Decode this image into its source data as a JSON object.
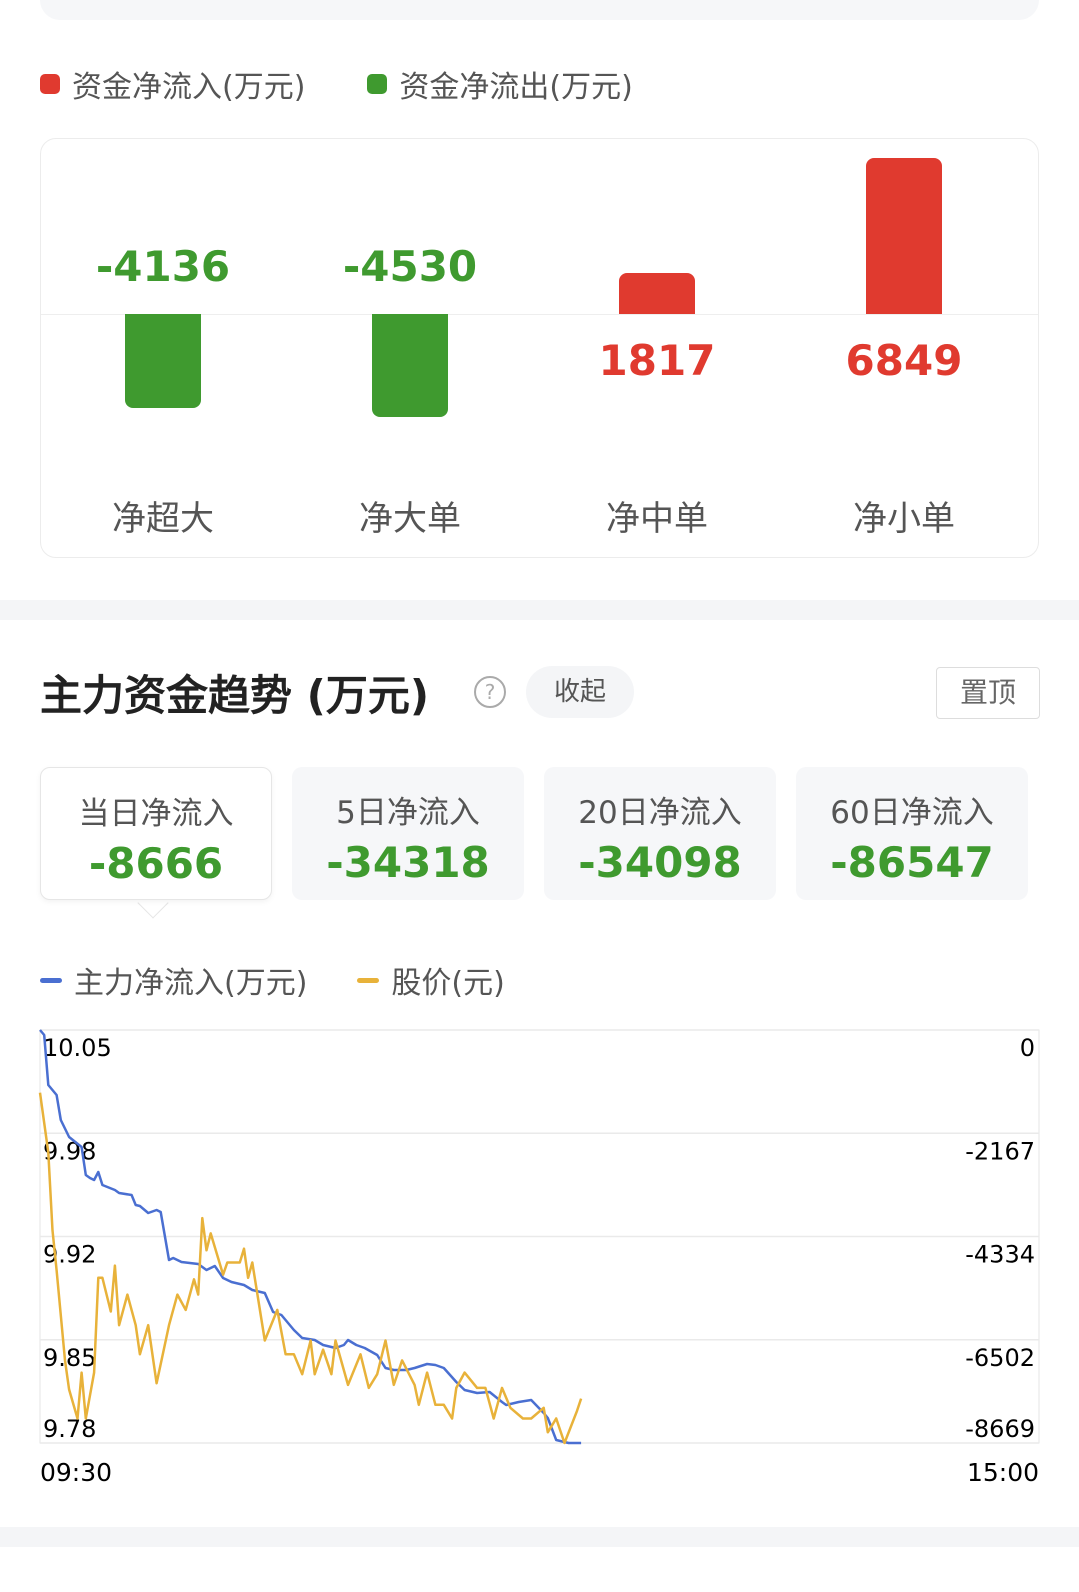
{
  "colors": {
    "inflow": "#e03a2f",
    "outflow": "#3f9a2f",
    "flow_line": "#4a6fd1",
    "price_line": "#e8b23a"
  },
  "distribution": {
    "legend": [
      {
        "label": "资金净流入(万元)",
        "color": "#e03a2f"
      },
      {
        "label": "资金净流出(万元)",
        "color": "#3f9a2f"
      }
    ],
    "chart_data": {
      "type": "bar",
      "categories": [
        "净超大",
        "净大单",
        "净中单",
        "净小单"
      ],
      "values": [
        -4136,
        -4530,
        1817,
        6849
      ],
      "value_labels": [
        "-4136",
        "-4530",
        "1817",
        "6849"
      ]
    }
  },
  "trend": {
    "title": "主力资金趋势 (万元)",
    "help_icon": "question-circle-icon",
    "collapse_label": "收起",
    "pin_label": "置顶",
    "tabs": [
      {
        "label": "当日净流入",
        "value": "-8666",
        "active": true
      },
      {
        "label": "5日净流入",
        "value": "-34318"
      },
      {
        "label": "20日净流入",
        "value": "-34098"
      },
      {
        "label": "60日净流入",
        "value": "-86547"
      }
    ],
    "legend": [
      {
        "label": "主力净流入(万元)",
        "color": "#4a6fd1"
      },
      {
        "label": "股价(元)",
        "color": "#e8b23a"
      }
    ],
    "chart_data": {
      "type": "line",
      "x_ticks": [
        "09:30",
        "15:00"
      ],
      "left_axis": {
        "ticks": [
          "10.05",
          "9.98",
          "9.92",
          "9.85",
          "9.78"
        ],
        "range": [
          9.78,
          10.05
        ]
      },
      "right_axis": {
        "ticks": [
          "0",
          "-2167",
          "-4334",
          "-6502",
          "-8669"
        ],
        "range": [
          -8669,
          0
        ]
      },
      "grid": true,
      "series": [
        {
          "name": "主力净流入(万元)",
          "axis": "right",
          "points": [
            [
              "09:30",
              0
            ],
            [
              "09:31",
              -105
            ],
            [
              "09:32",
              -1154
            ],
            [
              "09:34",
              -1364
            ],
            [
              "09:35",
              -1889
            ],
            [
              "09:37",
              -2246
            ],
            [
              "09:40",
              -2456
            ],
            [
              "09:41",
              -3044
            ],
            [
              "09:42",
              -3107
            ],
            [
              "09:43",
              -3149
            ],
            [
              "09:44",
              -2981
            ],
            [
              "09:45",
              -3253
            ],
            [
              "09:48",
              -3358
            ],
            [
              "09:49",
              -3421
            ],
            [
              "09:52",
              -3463
            ],
            [
              "09:53",
              -3673
            ],
            [
              "09:54",
              -3694
            ],
            [
              "09:56",
              -3841
            ],
            [
              "09:58",
              -3778
            ],
            [
              "09:59",
              -3820
            ],
            [
              "10:01",
              -4828
            ],
            [
              "10:02",
              -4786
            ],
            [
              "10:04",
              -4870
            ],
            [
              "10:08",
              -4912
            ],
            [
              "10:10",
              -5038
            ],
            [
              "10:12",
              -4954
            ],
            [
              "10:14",
              -5206
            ],
            [
              "10:16",
              -5290
            ],
            [
              "10:19",
              -5352
            ],
            [
              "10:21",
              -5457
            ],
            [
              "10:24",
              -5520
            ],
            [
              "10:26",
              -5919
            ],
            [
              "10:28",
              -5982
            ],
            [
              "10:31",
              -6297
            ],
            [
              "10:33",
              -6465
            ],
            [
              "10:36",
              -6507
            ],
            [
              "10:38",
              -6612
            ],
            [
              "10:41",
              -6675
            ],
            [
              "10:43",
              -6612
            ],
            [
              "10:44",
              -6507
            ],
            [
              "10:46",
              -6612
            ],
            [
              "10:48",
              -6675
            ],
            [
              "10:51",
              -6822
            ],
            [
              "10:53",
              -7095
            ],
            [
              "10:55",
              -7137
            ],
            [
              "10:58",
              -7137
            ],
            [
              "11:00",
              -7095
            ],
            [
              "11:03",
              -7011
            ],
            [
              "11:05",
              -7032
            ],
            [
              "11:07",
              -7095
            ],
            [
              "11:10",
              -7389
            ],
            [
              "11:12",
              -7557
            ],
            [
              "11:15",
              -7620
            ],
            [
              "11:18",
              -7599
            ],
            [
              "11:21",
              -7809
            ],
            [
              "11:22",
              -7872
            ],
            [
              "11:25",
              -7809
            ],
            [
              "11:28",
              -7767
            ],
            [
              "13:01",
              -8040
            ],
            [
              "13:02",
              -8145
            ],
            [
              "13:04",
              -8606
            ],
            [
              "13:07",
              -8669
            ],
            [
              "13:10",
              -8669
            ]
          ]
        },
        {
          "name": "股价(元)",
          "axis": "left",
          "points": [
            [
              "09:30",
              10.009
            ],
            [
              "09:32",
              9.97
            ],
            [
              "09:33",
              9.919
            ],
            [
              "09:34",
              9.893
            ],
            [
              "09:36",
              9.834
            ],
            [
              "09:37",
              9.815
            ],
            [
              "09:39",
              9.796
            ],
            [
              "09:40",
              9.826
            ],
            [
              "09:41",
              9.796
            ],
            [
              "09:43",
              9.826
            ],
            [
              "09:44",
              9.888
            ],
            [
              "09:45",
              9.888
            ],
            [
              "09:47",
              9.866
            ],
            [
              "09:48",
              9.896
            ],
            [
              "09:49",
              9.857
            ],
            [
              "09:51",
              9.877
            ],
            [
              "09:53",
              9.857
            ],
            [
              "09:54",
              9.838
            ],
            [
              "09:56",
              9.857
            ],
            [
              "09:58",
              9.819
            ],
            [
              "10:01",
              9.857
            ],
            [
              "10:03",
              9.877
            ],
            [
              "10:05",
              9.867
            ],
            [
              "10:07",
              9.887
            ],
            [
              "10:08",
              9.877
            ],
            [
              "10:09",
              9.927
            ],
            [
              "10:10",
              9.906
            ],
            [
              "10:11",
              9.917
            ],
            [
              "10:14",
              9.89
            ],
            [
              "10:15",
              9.898
            ],
            [
              "10:18",
              9.898
            ],
            [
              "10:19",
              9.907
            ],
            [
              "10:20",
              9.888
            ],
            [
              "10:21",
              9.898
            ],
            [
              "10:24",
              9.847
            ],
            [
              "10:27",
              9.867
            ],
            [
              "10:29",
              9.838
            ],
            [
              "10:31",
              9.838
            ],
            [
              "10:33",
              9.825
            ],
            [
              "10:35",
              9.847
            ],
            [
              "10:36",
              9.825
            ],
            [
              "10:38",
              9.841
            ],
            [
              "10:40",
              9.825
            ],
            [
              "10:41",
              9.847
            ],
            [
              "10:44",
              9.818
            ],
            [
              "10:47",
              9.838
            ],
            [
              "10:49",
              9.816
            ],
            [
              "10:51",
              9.825
            ],
            [
              "10:53",
              9.847
            ],
            [
              "10:55",
              9.818
            ],
            [
              "10:57",
              9.834
            ],
            [
              "11:00",
              9.818
            ],
            [
              "11:01",
              9.805
            ],
            [
              "11:03",
              9.826
            ],
            [
              "11:05",
              9.805
            ],
            [
              "11:07",
              9.805
            ],
            [
              "11:09",
              9.796
            ],
            [
              "11:10",
              9.816
            ],
            [
              "11:12",
              9.826
            ],
            [
              "11:15",
              9.816
            ],
            [
              "11:17",
              9.816
            ],
            [
              "11:19",
              9.796
            ],
            [
              "11:21",
              9.816
            ],
            [
              "11:23",
              9.803
            ],
            [
              "11:26",
              9.796
            ],
            [
              "11:28",
              9.796
            ],
            [
              "13:01",
              9.803
            ],
            [
              "13:02",
              9.787
            ],
            [
              "13:04",
              9.796
            ],
            [
              "13:06",
              9.78
            ],
            [
              "13:09",
              9.801
            ],
            [
              "13:10",
              9.809
            ]
          ]
        }
      ]
    }
  }
}
